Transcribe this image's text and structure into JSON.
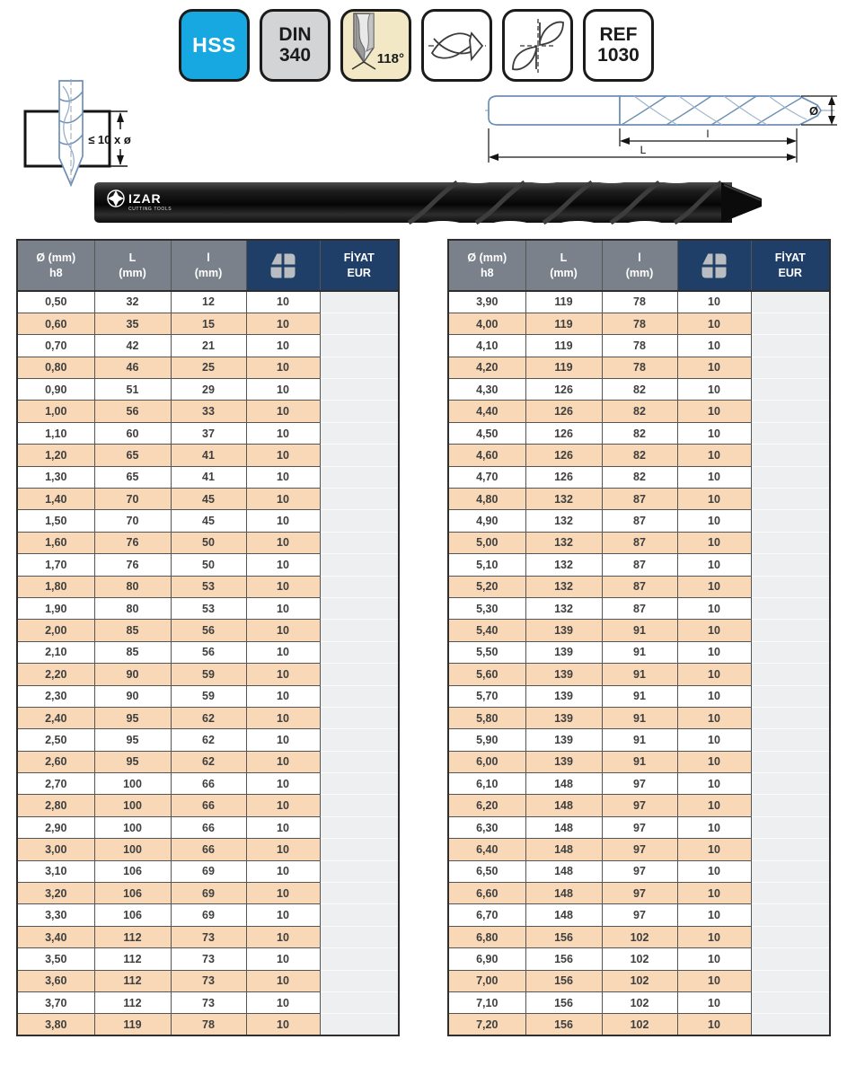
{
  "badges": {
    "hss": "HSS",
    "din_line1": "DIN",
    "din_line2": "340",
    "angle": "118°",
    "icon_names": [
      "drill-point-angle-icon",
      "drill-tip-side-icon",
      "drill-tip-front-icon"
    ],
    "ref_line1": "REF",
    "ref_line2": "1030"
  },
  "colors": {
    "hss_blue": "#18a8e1",
    "din_gray": "#d3d4d6",
    "angle_cream": "#f2e8c5",
    "header_gray": "#7b818b",
    "header_navy": "#1f3e68",
    "row_peach": "#f8d8b6",
    "price_gray": "#edeff1",
    "drawing_blue": "#6d8fb5"
  },
  "diagram_left": {
    "note": "≤ 10 x ø"
  },
  "diagram_right": {
    "dim_flute": "l",
    "dim_total": "L",
    "dim_diameter": "Ø"
  },
  "photo": {
    "brand": "IZAR",
    "brand_sub": "CUTTING TOOLS"
  },
  "table_headers": {
    "col1_line1": "Ø (mm)",
    "col1_line2": "h8",
    "col2_line1": "L",
    "col2_line2": "(mm)",
    "col3_line1": "l",
    "col3_line2": "(mm)",
    "col4_icon": "izar-logo-icon",
    "col5_line1": "FİYAT",
    "col5_line2": "EUR"
  },
  "left_table": {
    "rows": [
      [
        "0,50",
        "32",
        "12",
        "10"
      ],
      [
        "0,60",
        "35",
        "15",
        "10"
      ],
      [
        "0,70",
        "42",
        "21",
        "10"
      ],
      [
        "0,80",
        "46",
        "25",
        "10"
      ],
      [
        "0,90",
        "51",
        "29",
        "10"
      ],
      [
        "1,00",
        "56",
        "33",
        "10"
      ],
      [
        "1,10",
        "60",
        "37",
        "10"
      ],
      [
        "1,20",
        "65",
        "41",
        "10"
      ],
      [
        "1,30",
        "65",
        "41",
        "10"
      ],
      [
        "1,40",
        "70",
        "45",
        "10"
      ],
      [
        "1,50",
        "70",
        "45",
        "10"
      ],
      [
        "1,60",
        "76",
        "50",
        "10"
      ],
      [
        "1,70",
        "76",
        "50",
        "10"
      ],
      [
        "1,80",
        "80",
        "53",
        "10"
      ],
      [
        "1,90",
        "80",
        "53",
        "10"
      ],
      [
        "2,00",
        "85",
        "56",
        "10"
      ],
      [
        "2,10",
        "85",
        "56",
        "10"
      ],
      [
        "2,20",
        "90",
        "59",
        "10"
      ],
      [
        "2,30",
        "90",
        "59",
        "10"
      ],
      [
        "2,40",
        "95",
        "62",
        "10"
      ],
      [
        "2,50",
        "95",
        "62",
        "10"
      ],
      [
        "2,60",
        "95",
        "62",
        "10"
      ],
      [
        "2,70",
        "100",
        "66",
        "10"
      ],
      [
        "2,80",
        "100",
        "66",
        "10"
      ],
      [
        "2,90",
        "100",
        "66",
        "10"
      ],
      [
        "3,00",
        "100",
        "66",
        "10"
      ],
      [
        "3,10",
        "106",
        "69",
        "10"
      ],
      [
        "3,20",
        "106",
        "69",
        "10"
      ],
      [
        "3,30",
        "106",
        "69",
        "10"
      ],
      [
        "3,40",
        "112",
        "73",
        "10"
      ],
      [
        "3,50",
        "112",
        "73",
        "10"
      ],
      [
        "3,60",
        "112",
        "73",
        "10"
      ],
      [
        "3,70",
        "112",
        "73",
        "10"
      ],
      [
        "3,80",
        "119",
        "78",
        "10"
      ]
    ]
  },
  "right_table": {
    "rows": [
      [
        "3,90",
        "119",
        "78",
        "10"
      ],
      [
        "4,00",
        "119",
        "78",
        "10"
      ],
      [
        "4,10",
        "119",
        "78",
        "10"
      ],
      [
        "4,20",
        "119",
        "78",
        "10"
      ],
      [
        "4,30",
        "126",
        "82",
        "10"
      ],
      [
        "4,40",
        "126",
        "82",
        "10"
      ],
      [
        "4,50",
        "126",
        "82",
        "10"
      ],
      [
        "4,60",
        "126",
        "82",
        "10"
      ],
      [
        "4,70",
        "126",
        "82",
        "10"
      ],
      [
        "4,80",
        "132",
        "87",
        "10"
      ],
      [
        "4,90",
        "132",
        "87",
        "10"
      ],
      [
        "5,00",
        "132",
        "87",
        "10"
      ],
      [
        "5,10",
        "132",
        "87",
        "10"
      ],
      [
        "5,20",
        "132",
        "87",
        "10"
      ],
      [
        "5,30",
        "132",
        "87",
        "10"
      ],
      [
        "5,40",
        "139",
        "91",
        "10"
      ],
      [
        "5,50",
        "139",
        "91",
        "10"
      ],
      [
        "5,60",
        "139",
        "91",
        "10"
      ],
      [
        "5,70",
        "139",
        "91",
        "10"
      ],
      [
        "5,80",
        "139",
        "91",
        "10"
      ],
      [
        "5,90",
        "139",
        "91",
        "10"
      ],
      [
        "6,00",
        "139",
        "91",
        "10"
      ],
      [
        "6,10",
        "148",
        "97",
        "10"
      ],
      [
        "6,20",
        "148",
        "97",
        "10"
      ],
      [
        "6,30",
        "148",
        "97",
        "10"
      ],
      [
        "6,40",
        "148",
        "97",
        "10"
      ],
      [
        "6,50",
        "148",
        "97",
        "10"
      ],
      [
        "6,60",
        "148",
        "97",
        "10"
      ],
      [
        "6,70",
        "148",
        "97",
        "10"
      ],
      [
        "6,80",
        "156",
        "102",
        "10"
      ],
      [
        "6,90",
        "156",
        "102",
        "10"
      ],
      [
        "7,00",
        "156",
        "102",
        "10"
      ],
      [
        "7,10",
        "156",
        "102",
        "10"
      ],
      [
        "7,20",
        "156",
        "102",
        "10"
      ]
    ]
  }
}
